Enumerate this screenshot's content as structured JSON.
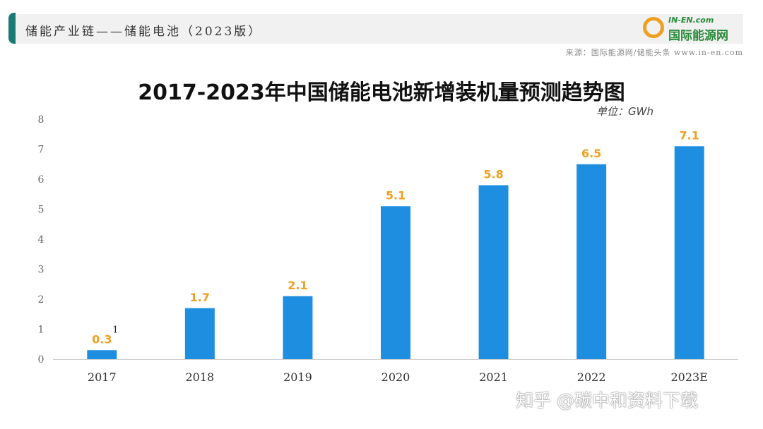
{
  "header": {
    "title": "储能产业链——储能电池（2023版）",
    "source": "来源：国际能源网/储能头条 www.in-en.com",
    "logo_top": "IN-EN.com",
    "logo_bottom": "国际能源网"
  },
  "watermark": "知乎 @碳中和资料下载",
  "footnote_marker": "1",
  "colors": {
    "bar": "#1e8fe0",
    "label": "#f0a020",
    "header_accent": "#1a7a74"
  },
  "chart_data": {
    "type": "bar",
    "title": "2017-2023年中国储能电池新增装机量预测趋势图",
    "unit": "单位：GWh",
    "categories": [
      "2017",
      "2018",
      "2019",
      "2020",
      "2021",
      "2022",
      "2023E"
    ],
    "values": [
      0.3,
      1.7,
      2.1,
      5.1,
      5.8,
      6.5,
      7.1
    ],
    "labels": [
      "0.3",
      "1.7",
      "2.1",
      "5.1",
      "5.8",
      "6.5",
      "7.1"
    ],
    "yticks": [
      "0",
      "1",
      "2",
      "3",
      "4",
      "5",
      "6",
      "7",
      "8"
    ],
    "ylim": [
      0,
      8
    ],
    "grid": false,
    "xlabel": "",
    "ylabel": ""
  }
}
